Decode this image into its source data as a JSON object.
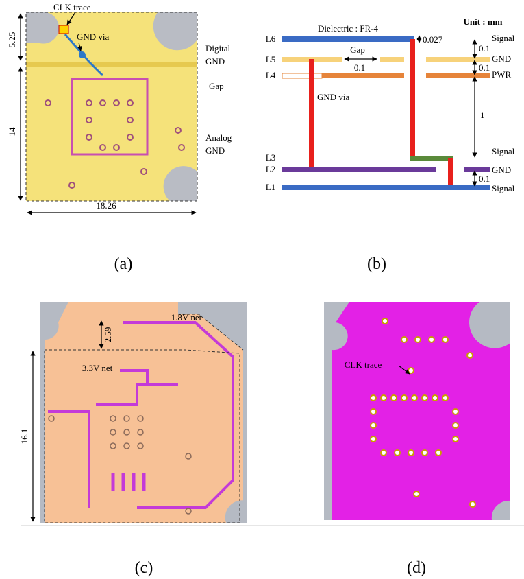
{
  "panel_a": {
    "caption": "(a)",
    "clk_trace": "CLK trace",
    "gnd_via": "GND via",
    "digital_gnd": [
      "Digital",
      "GND"
    ],
    "gap": "Gap",
    "analog_gnd": [
      "Analog",
      "GND"
    ],
    "dim_top": "5.25",
    "dim_left": "14",
    "dim_bottom": "18.26"
  },
  "panel_b": {
    "caption": "(b)",
    "dielectric": "Dielectric : FR-4",
    "unit": "Unit : mm",
    "layers": [
      "L6",
      "L5",
      "L4",
      "L3",
      "L2",
      "L1"
    ],
    "roles": [
      "Signal",
      "GND",
      "PWR",
      "Signal",
      "GND",
      "Signal"
    ],
    "gap": "Gap",
    "gnd_via": "GND via",
    "thickness_top": "0.027",
    "gap_width": "0.1",
    "spacings": [
      "0.1",
      "0.1",
      "1",
      "0.1"
    ]
  },
  "panel_c": {
    "caption": "(c)",
    "net_18": "1.8V net",
    "net_33": "3.3V net",
    "dim_top": "2.59",
    "dim_left": "16.1"
  },
  "panel_d": {
    "caption": "(d)",
    "clk_trace": "CLK trace"
  }
}
